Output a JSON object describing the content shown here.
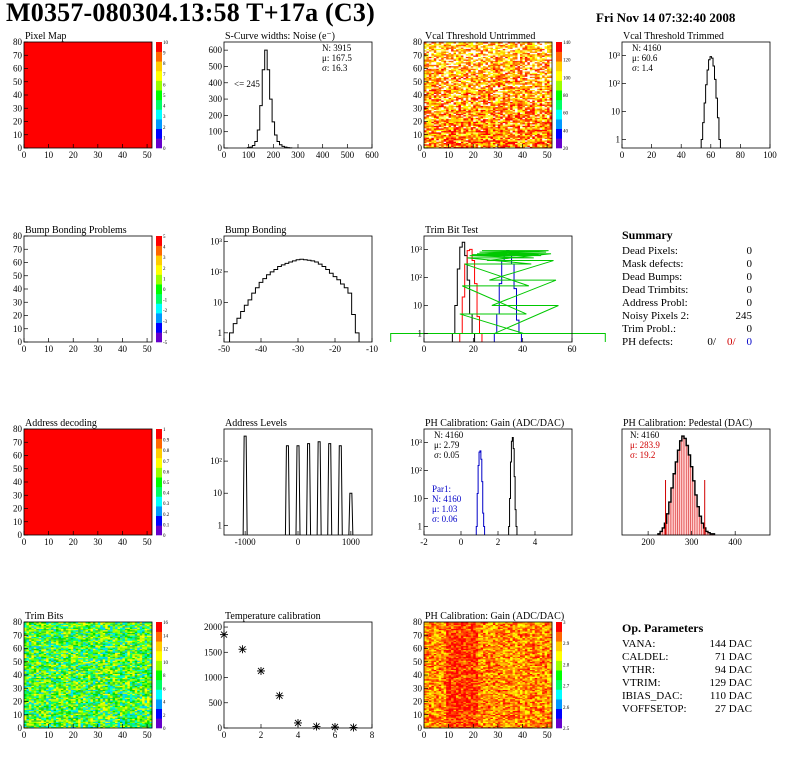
{
  "header": {
    "title": "M0357-080304.13:58 T+17a (C3)",
    "date": "Fri Nov 14 07:32:40 2008"
  },
  "summary": {
    "title": "Summary",
    "rows": [
      {
        "label": "Dead Pixels:",
        "value": "0"
      },
      {
        "label": "Mask defects:",
        "value": "0"
      },
      {
        "label": "Dead Bumps:",
        "value": "0"
      },
      {
        "label": "Dead Trimbits:",
        "value": "0"
      },
      {
        "label": "Address Probl:",
        "value": "0"
      },
      {
        "label": "Noisy Pixels 2:",
        "value": "245"
      },
      {
        "label": "Trim Probl.:",
        "value": "0"
      }
    ],
    "ph_label": "PH defects:",
    "ph_values": [
      "0/",
      "0/",
      "0"
    ]
  },
  "op_params": {
    "title": "Op. Parameters",
    "rows": [
      {
        "label": "VANA:",
        "value": "144 DAC"
      },
      {
        "label": "CALDEL:",
        "value": "71 DAC"
      },
      {
        "label": "VTHR:",
        "value": "94 DAC"
      },
      {
        "label": "VTRIM:",
        "value": "129 DAC"
      },
      {
        "label": "IBIAS_DAC:",
        "value": "110 DAC"
      },
      {
        "label": "VOFFSETOP:",
        "value": "27 DAC"
      }
    ]
  },
  "colors": {
    "red": "#ff0000",
    "black": "#000000",
    "blue": "#0000c8",
    "green": "#00c800"
  },
  "chart_data": [
    {
      "id": "pixel-map",
      "type": "heatmap",
      "title": "Pixel Map",
      "xlim": [
        0,
        52
      ],
      "ylim": [
        0,
        80
      ],
      "xticks": [
        "0",
        "10",
        "20",
        "30",
        "40",
        "50"
      ],
      "yticks": [
        "0",
        "10",
        "20",
        "30",
        "40",
        "50",
        "60",
        "70",
        "80"
      ],
      "zticks": [
        "0",
        "1",
        "2",
        "3",
        "4",
        "5",
        "6",
        "7",
        "8",
        "9",
        "10"
      ],
      "fill": "uniform-red",
      "value": 10
    },
    {
      "id": "scurve-widths",
      "type": "histogram",
      "title": "S-Curve widths: Noise (e⁻)",
      "xlim": [
        0,
        600
      ],
      "ylim": [
        0,
        650
      ],
      "xticks": [
        "0",
        "100",
        "200",
        "300",
        "400",
        "500",
        "600"
      ],
      "yticks": [
        "0",
        "100",
        "200",
        "300",
        "400",
        "500",
        "600"
      ],
      "stats": [
        "N: 3915",
        "μ: 167.5",
        "σ: 16.3"
      ],
      "annotation": "<= 245",
      "x": [
        100,
        110,
        120,
        130,
        140,
        150,
        160,
        170,
        180,
        190,
        200,
        210,
        220,
        230,
        240,
        250,
        260,
        270
      ],
      "values": [
        2,
        5,
        15,
        40,
        110,
        260,
        480,
        600,
        480,
        300,
        160,
        80,
        40,
        20,
        10,
        5,
        2,
        1
      ]
    },
    {
      "id": "vcal-untrimmed",
      "type": "heatmap",
      "title": "Vcal Threshold Untrimmed",
      "xlim": [
        0,
        52
      ],
      "ylim": [
        0,
        80
      ],
      "xticks": [
        "0",
        "10",
        "20",
        "30",
        "40",
        "50"
      ],
      "yticks": [
        "0",
        "10",
        "20",
        "30",
        "40",
        "50",
        "60",
        "70",
        "80"
      ],
      "zticks": [
        "20",
        "40",
        "60",
        "80",
        "100",
        "120",
        "140"
      ],
      "fill": "gradient-orange-yellow"
    },
    {
      "id": "vcal-trimmed",
      "type": "histogram",
      "title": "Vcal Threshold Trimmed",
      "log": true,
      "xlim": [
        0,
        100
      ],
      "ylim": [
        0.5,
        3000
      ],
      "xticks": [
        "0",
        "20",
        "40",
        "60",
        "80",
        "100"
      ],
      "yticks": [
        "1",
        "10",
        "10²",
        "10³"
      ],
      "stats": [
        "N: 4160",
        "μ: 60.6",
        "σ:  1.4"
      ],
      "x": [
        54,
        55,
        56,
        57,
        58,
        59,
        60,
        61,
        62,
        63,
        64,
        65,
        66
      ],
      "values": [
        1,
        4,
        20,
        90,
        300,
        700,
        900,
        800,
        420,
        140,
        30,
        6,
        1
      ]
    },
    {
      "id": "bump-problems",
      "type": "heatmap",
      "title": "Bump Bonding Problems",
      "xlim": [
        0,
        52
      ],
      "ylim": [
        0,
        80
      ],
      "xticks": [
        "0",
        "10",
        "20",
        "30",
        "40",
        "50"
      ],
      "yticks": [
        "0",
        "10",
        "20",
        "30",
        "40",
        "50",
        "60",
        "70",
        "80"
      ],
      "zticks": [
        "-5",
        "-4",
        "-3",
        "-2",
        "-1",
        "0",
        "1",
        "2",
        "3",
        "4",
        "5"
      ],
      "fill": "empty"
    },
    {
      "id": "bump-bonding",
      "type": "histogram",
      "title": "Bump Bonding",
      "log": true,
      "xlim": [
        -50,
        -10
      ],
      "ylim": [
        0.5,
        1500
      ],
      "xticks": [
        "-50",
        "-40",
        "-30",
        "-20",
        "-10"
      ],
      "yticks": [
        "1",
        "10",
        "10²",
        "10³"
      ],
      "x": [
        -48,
        -47,
        -46,
        -45,
        -44,
        -43,
        -42,
        -41,
        -40,
        -39,
        -38,
        -37,
        -36,
        -35,
        -34,
        -33,
        -32,
        -31,
        -30,
        -29,
        -28,
        -27,
        -26,
        -25,
        -24,
        -23,
        -22,
        -21,
        -20,
        -19,
        -18,
        -17,
        -16,
        -15,
        -14
      ],
      "values": [
        1,
        2,
        3,
        5,
        8,
        12,
        20,
        30,
        45,
        60,
        80,
        100,
        120,
        150,
        170,
        190,
        210,
        230,
        250,
        260,
        250,
        240,
        230,
        210,
        180,
        150,
        120,
        90,
        70,
        55,
        40,
        30,
        20,
        4,
        1
      ]
    },
    {
      "id": "trim-bit-test",
      "type": "histogram",
      "title": "Trim Bit Test",
      "log": true,
      "xlim": [
        0,
        60
      ],
      "ylim": [
        0.5,
        3000
      ],
      "xticks": [
        "0",
        "20",
        "40",
        "60"
      ],
      "yticks": [
        "1",
        "10",
        "10²",
        "10³"
      ],
      "series": [
        {
          "color": "black",
          "x": [
            12,
            13,
            14,
            15,
            16,
            17,
            18,
            19,
            20
          ],
          "values": [
            1,
            10,
            200,
            1200,
            1800,
            600,
            80,
            5,
            1
          ]
        },
        {
          "color": "red",
          "x": [
            15,
            16,
            17,
            18,
            19,
            20,
            21,
            22,
            23
          ],
          "values": [
            1,
            20,
            300,
            900,
            1000,
            400,
            60,
            4,
            1
          ]
        },
        {
          "color": "blue",
          "x": [
            29,
            30,
            31,
            32,
            33,
            34,
            35,
            36,
            37,
            38,
            39
          ],
          "values": [
            1,
            5,
            60,
            400,
            800,
            900,
            700,
            300,
            40,
            3,
            1
          ]
        },
        {
          "color": "green",
          "x": [
            0,
            27,
            28,
            29,
            30,
            31,
            32,
            33,
            34,
            35,
            36,
            37,
            38,
            39,
            40,
            41,
            42,
            60
          ],
          "values": [
            1,
            1,
            5,
            50,
            300,
            500,
            600,
            650,
            600,
            700,
            800,
            900,
            700,
            400,
            80,
            10,
            1,
            1
          ]
        }
      ]
    },
    {
      "id": "address-decoding",
      "type": "heatmap",
      "title": "Address decoding",
      "xlim": [
        0,
        52
      ],
      "ylim": [
        0,
        80
      ],
      "xticks": [
        "0",
        "10",
        "20",
        "30",
        "40",
        "50"
      ],
      "yticks": [
        "0",
        "10",
        "20",
        "30",
        "40",
        "50",
        "60",
        "70",
        "80"
      ],
      "zticks": [
        "0",
        "0.1",
        "0.2",
        "0.3",
        "0.4",
        "0.5",
        "0.6",
        "0.7",
        "0.8",
        "0.9",
        "1"
      ],
      "fill": "uniform-red",
      "value": 1
    },
    {
      "id": "address-levels",
      "type": "histogram",
      "title": "Address Levels",
      "log": true,
      "xlim": [
        -1400,
        1400
      ],
      "ylim": [
        0.5,
        1000
      ],
      "xticks": [
        "-1000",
        "0",
        "1000"
      ],
      "yticks": [
        "1",
        "10",
        "10²"
      ],
      "peaks": [
        {
          "x": -1000,
          "h": 600
        },
        {
          "x": -200,
          "h": 300
        },
        {
          "x": 0,
          "h": 300
        },
        {
          "x": 200,
          "h": 350
        },
        {
          "x": 400,
          "h": 400
        },
        {
          "x": 600,
          "h": 350
        },
        {
          "x": 800,
          "h": 300
        },
        {
          "x": 1000,
          "h": 10
        }
      ]
    },
    {
      "id": "ph-gain",
      "type": "histogram",
      "title": "PH Calibration: Gain (ADC/DAC)",
      "log": true,
      "xlim": [
        -2,
        6
      ],
      "ylim": [
        0.5,
        3000
      ],
      "xticks": [
        "-2",
        "0",
        "2",
        "4"
      ],
      "yticks": [
        "1",
        "10",
        "10²",
        "10³"
      ],
      "stats": [
        "N: 4160",
        "μ: 2.79",
        "σ: 0.05"
      ],
      "par1": [
        "Par1:",
        "N: 4160",
        "μ: 1.03",
        "σ: 0.06"
      ],
      "series": [
        {
          "color": "black",
          "x": [
            2.6,
            2.65,
            2.7,
            2.75,
            2.8,
            2.85,
            2.9,
            2.95,
            3.0
          ],
          "values": [
            1,
            10,
            200,
            1100,
            1500,
            600,
            60,
            4,
            1
          ]
        },
        {
          "color": "blue",
          "x": [
            0.85,
            0.9,
            0.95,
            1.0,
            1.05,
            1.1,
            1.15,
            1.2,
            1.25
          ],
          "values": [
            1,
            15,
            150,
            450,
            500,
            250,
            40,
            3,
            1
          ]
        }
      ]
    },
    {
      "id": "ph-pedestal",
      "type": "histogram",
      "title": "PH Calibration: Pedestal (DAC)",
      "xlim": [
        140,
        480
      ],
      "ylim": [
        0,
        90
      ],
      "xticks": [
        "200",
        "300",
        "400"
      ],
      "yticks": [],
      "stats": [
        "N: 4160",
        "μ: 283.9",
        "σ: 19.2"
      ],
      "x": [
        225,
        230,
        235,
        240,
        245,
        250,
        255,
        260,
        265,
        270,
        275,
        280,
        285,
        290,
        295,
        300,
        305,
        310,
        315,
        320,
        325,
        330,
        335,
        340,
        345,
        350
      ],
      "values": [
        1,
        3,
        6,
        10,
        18,
        28,
        40,
        52,
        62,
        72,
        80,
        84,
        82,
        76,
        68,
        58,
        46,
        34,
        24,
        16,
        10,
        6,
        3,
        2,
        1,
        1
      ]
    },
    {
      "id": "trim-bits",
      "type": "heatmap",
      "title": "Trim Bits",
      "xlim": [
        0,
        52
      ],
      "ylim": [
        0,
        80
      ],
      "xticks": [
        "0",
        "10",
        "20",
        "30",
        "40",
        "50"
      ],
      "yticks": [
        "0",
        "10",
        "20",
        "30",
        "40",
        "50",
        "60",
        "70",
        "80"
      ],
      "zticks": [
        "0",
        "2",
        "4",
        "6",
        "8",
        "10",
        "12",
        "14",
        "16"
      ],
      "fill": "green-noise"
    },
    {
      "id": "temp-calibration",
      "type": "scatter",
      "title": "Temperature calibration",
      "xlim": [
        0,
        8
      ],
      "ylim": [
        0,
        2100
      ],
      "xticks": [
        "0",
        "2",
        "4",
        "6",
        "8"
      ],
      "yticks": [
        "0",
        "500",
        "1000",
        "1500",
        "2000"
      ],
      "x": [
        0,
        1,
        2,
        3,
        4,
        5,
        6,
        7
      ],
      "values": [
        1850,
        1560,
        1130,
        640,
        100,
        30,
        20,
        10
      ]
    },
    {
      "id": "ph-gain-map",
      "type": "heatmap",
      "title": "PH Calibration: Gain (ADC/DAC)",
      "xlim": [
        0,
        52
      ],
      "ylim": [
        0,
        80
      ],
      "xticks": [
        "0",
        "10",
        "20",
        "30",
        "40",
        "50"
      ],
      "yticks": [
        "0",
        "10",
        "20",
        "30",
        "40",
        "50",
        "60",
        "70",
        "80"
      ],
      "zticks": [
        "2.5",
        "2.6",
        "2.7",
        "2.8",
        "2.9",
        "3"
      ],
      "fill": "gradient-orange-yellow"
    }
  ]
}
